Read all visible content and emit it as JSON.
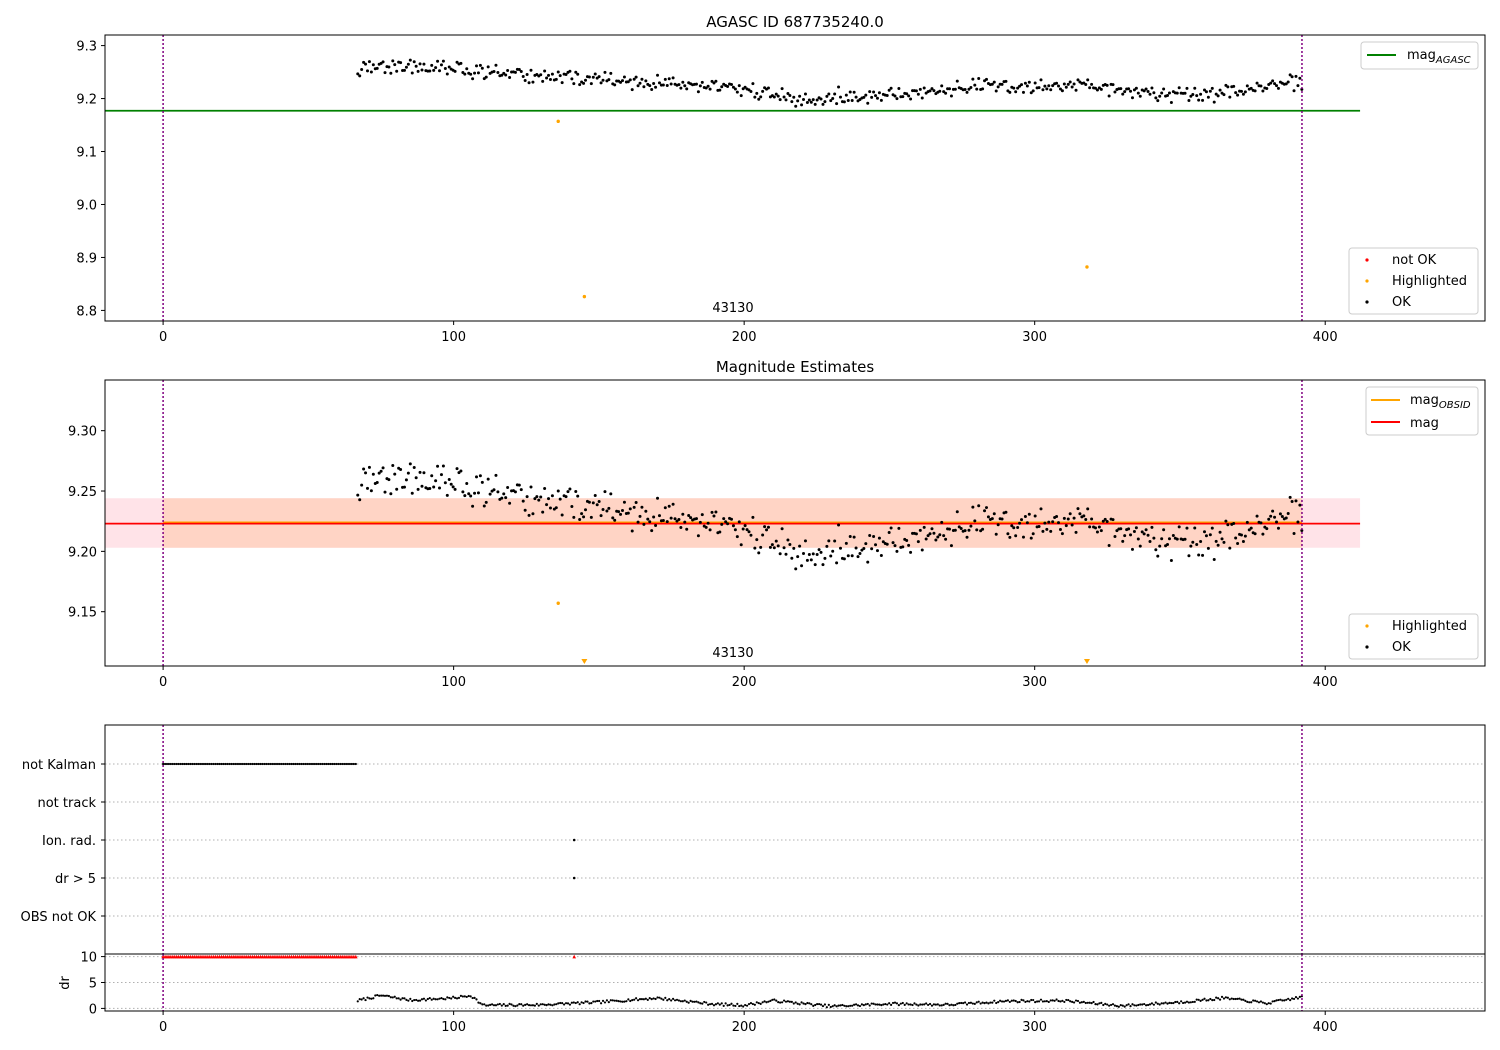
{
  "figure": {
    "panels": [
      "AGASC",
      "Magnitude Estimates",
      "flags",
      "dr"
    ]
  },
  "chart_data": [
    {
      "type": "scatter",
      "title": "AGASC ID 687735240.0",
      "annotation": "43130",
      "xlim": [
        -20,
        455
      ],
      "ylim": [
        8.78,
        9.32
      ],
      "xticks": [
        0,
        100,
        200,
        300,
        400
      ],
      "yticks": [
        8.8,
        8.9,
        9.0,
        9.1,
        9.2,
        9.3
      ],
      "vlines": [
        0,
        392
      ],
      "hlines": [
        {
          "name": "mag_AGASC",
          "y": 9.177,
          "x": [
            -20,
            412
          ],
          "color": "#008000"
        }
      ],
      "legend_upper": [
        {
          "label": "mag",
          "sub": "AGASC",
          "color": "#008000"
        }
      ],
      "legend_lower": [
        {
          "label": "not OK",
          "color": "#ff0000"
        },
        {
          "label": "Highlighted",
          "color": "#ffa500"
        },
        {
          "label": "OK",
          "color": "#000000"
        }
      ],
      "highlighted": {
        "x": [
          136,
          145,
          318
        ],
        "y": [
          9.157,
          8.826,
          8.882
        ]
      },
      "ok_series": {
        "x_start": 67,
        "x_end": 392,
        "trend_x": [
          67,
          80,
          100,
          120,
          140,
          160,
          180,
          200,
          220,
          240,
          260,
          280,
          300,
          320,
          340,
          360,
          380,
          392
        ],
        "trend_y": [
          9.255,
          9.262,
          9.255,
          9.245,
          9.24,
          9.232,
          9.225,
          9.218,
          9.195,
          9.205,
          9.21,
          9.225,
          9.22,
          9.225,
          9.21,
          9.205,
          9.225,
          9.23
        ],
        "noise": 0.009
      }
    },
    {
      "type": "scatter",
      "title": "Magnitude Estimates",
      "annotation": "43130",
      "xlim": [
        -20,
        455
      ],
      "ylim": [
        9.105,
        9.342
      ],
      "xticks": [
        0,
        100,
        200,
        300,
        400
      ],
      "yticks": [
        9.15,
        9.2,
        9.25,
        9.3
      ],
      "vlines": [
        0,
        392
      ],
      "band": {
        "x": [
          -20,
          412
        ],
        "y": [
          9.203,
          9.244
        ],
        "color": "#ffc0cb"
      },
      "band_obsid": {
        "x": [
          0,
          392
        ],
        "y": [
          9.203,
          9.244
        ],
        "color": "#ffc8a8"
      },
      "hlines": [
        {
          "name": "mag_OBSID",
          "y": 9.224,
          "x": [
            0,
            392
          ],
          "color": "#ffa500"
        },
        {
          "name": "mag",
          "y": 9.223,
          "x": [
            -20,
            412
          ],
          "color": "#ff0000"
        }
      ],
      "legend_upper": [
        {
          "label": "mag",
          "sub": "OBSID",
          "color": "#ffa500"
        },
        {
          "label": "mag",
          "sub": "",
          "color": "#ff0000"
        }
      ],
      "legend_lower": [
        {
          "label": "Highlighted",
          "color": "#ffa500"
        },
        {
          "label": "OK",
          "color": "#000000"
        }
      ],
      "highlighted": {
        "x": [
          136
        ],
        "y": [
          9.157
        ]
      },
      "offscale_markers_x": [
        145,
        318
      ]
    },
    {
      "type": "scatter",
      "xlim": [
        -20,
        455
      ],
      "categories": [
        "not Kalman",
        "not track",
        "Ion. rad.",
        "dr > 5",
        "OBS not OK"
      ],
      "flag_ranges": {
        "not Kalman": [
          0,
          67
        ]
      },
      "flag_points": {
        "Ion. rad.": [
          141.5
        ],
        "dr > 5": [
          141.5
        ]
      },
      "vlines": [
        0,
        392
      ]
    },
    {
      "type": "scatter",
      "ylabel": "dr",
      "xlim": [
        -20,
        455
      ],
      "ylim": [
        -0.5,
        10.5
      ],
      "xticks": [
        0,
        100,
        200,
        300,
        400
      ],
      "yticks": [
        0,
        5,
        10
      ],
      "vlines": [
        0,
        392
      ],
      "capped_range": [
        0,
        67
      ],
      "capped_point_x": [
        141.5
      ],
      "capped_value": 10,
      "dr_series": {
        "x_start": 67,
        "x_end": 392,
        "trend_x": [
          67,
          75,
          85,
          100,
          106,
          110,
          130,
          150,
          170,
          190,
          200,
          210,
          230,
          250,
          270,
          290,
          310,
          330,
          350,
          365,
          380,
          392
        ],
        "trend_y": [
          1.5,
          2.5,
          1.6,
          2.0,
          2.5,
          0.6,
          0.7,
          1.2,
          2.0,
          0.8,
          0.6,
          1.5,
          0.4,
          0.9,
          0.7,
          1.4,
          1.5,
          0.5,
          1.2,
          2.0,
          1.0,
          2.2
        ]
      }
    }
  ]
}
